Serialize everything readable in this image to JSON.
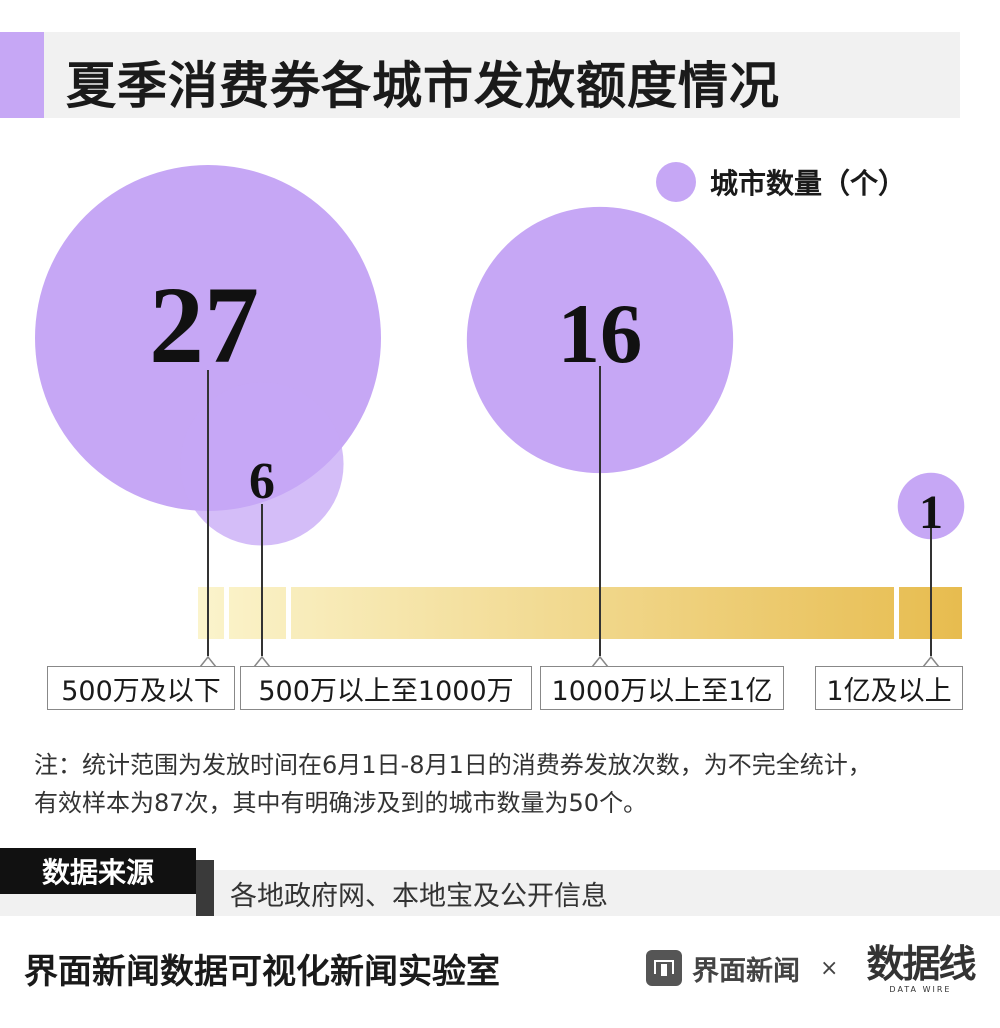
{
  "header": {
    "title": "夏季消费券各城市发放额度情况"
  },
  "legend": {
    "label": "城市数量（个）",
    "color": "#c6a7f5"
  },
  "chart_data": {
    "type": "bubble",
    "title": "夏季消费券各城市发放额度情况",
    "legend": "城市数量（个）",
    "categories": [
      "500万及以下",
      "500万以上至1000万",
      "1000万以上至1亿",
      "1亿及以上"
    ],
    "values": [
      27,
      6,
      16,
      1
    ],
    "bubble_color": "#c6a7f5",
    "axis_gradient": [
      "#fbf4cc",
      "#e7bc4f"
    ]
  },
  "note": {
    "line1": "注：统计范围为发放时间在6月1日-8月1日的消费券发放次数，为不完全统计，",
    "line2": "有效样本为87次，其中有明确涉及到的城市数量为50个。"
  },
  "source": {
    "label": "数据来源",
    "text": "各地政府网、本地宝及公开信息"
  },
  "footer": {
    "lab_name": "界面新闻数据可视化新闻实验室",
    "brand1": "界面新闻",
    "times": "×",
    "brand2": "数据线",
    "brand2_sub": "DATA WIRE",
    "brand1_icon": "jiemian-logo-icon"
  }
}
